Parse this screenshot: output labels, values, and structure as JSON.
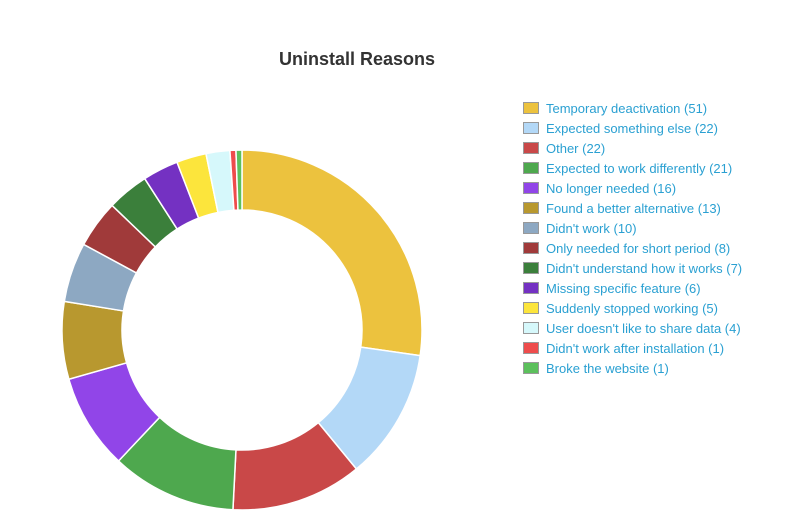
{
  "chart_data": {
    "type": "pie",
    "title": "Uninstall Reasons",
    "categories": [
      "Temporary deactivation",
      "Expected something else",
      "Other",
      "Expected to work differently",
      "No longer needed",
      "Found a better alternative",
      "Didn't work",
      "Only needed for short period",
      "Didn't understand how it works",
      "Missing specific feature",
      "Suddenly stopped working",
      "User doesn't like to share data",
      "Didn't work after installation",
      "Broke the website"
    ],
    "values": [
      51,
      22,
      22,
      21,
      16,
      13,
      10,
      8,
      7,
      6,
      5,
      4,
      1,
      1
    ],
    "legend_labels": [
      "Temporary deactivation (51)",
      "Expected something else (22)",
      "Other (22)",
      "Expected to work differently (21)",
      "No longer needed (16)",
      "Found a better alternative (13)",
      "Didn't work (10)",
      "Only needed for short period (8)",
      "Didn't understand how it works (7)",
      "Missing specific feature (6)",
      "Suddenly stopped working (5)",
      "User doesn't like to share data (4)",
      "Didn't work after installation (1)",
      "Broke the website (1)"
    ],
    "colors": [
      "#ecc23e",
      "#b3d8f7",
      "#c94848",
      "#4ea84e",
      "#9145e8",
      "#b8982f",
      "#8da8c2",
      "#a03a3a",
      "#3b7f3b",
      "#7431c2",
      "#fce53c",
      "#d6f8fb",
      "#ee4c4c",
      "#5cc05c"
    ],
    "donut": true,
    "legend_position": "right"
  }
}
